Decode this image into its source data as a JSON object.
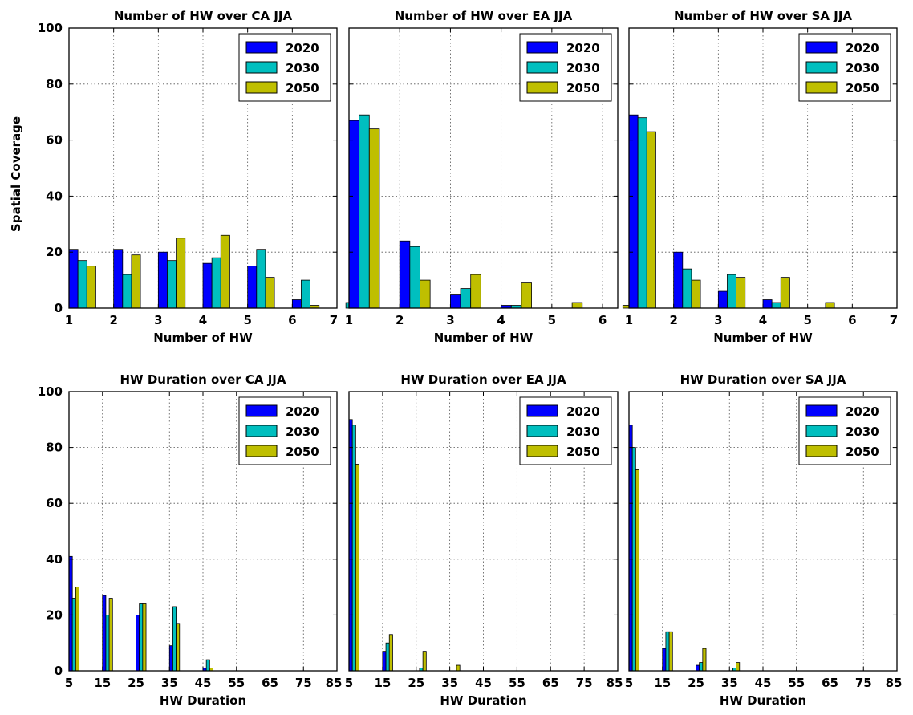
{
  "figure": {
    "ylabel": "Spatial Coverage"
  },
  "chart_data": [
    {
      "type": "bar",
      "title": "Number of HW over CA JJA",
      "xlabel": "Number of HW",
      "ylabel": "Spatial Coverage",
      "categories": [
        1,
        2,
        3,
        4,
        5,
        6,
        7
      ],
      "xticks": [
        "1",
        "2",
        "3",
        "4",
        "5",
        "6",
        "7"
      ],
      "yticks": [
        "0",
        "20",
        "40",
        "60",
        "80",
        "100"
      ],
      "ylim": [
        0,
        100
      ],
      "grid": true,
      "legend": "top-right",
      "series": [
        {
          "name": "2020",
          "color": "#0000ff",
          "values": [
            21,
            21,
            20,
            16,
            15,
            3,
            0
          ]
        },
        {
          "name": "2030",
          "color": "#00bfbf",
          "values": [
            17,
            12,
            17,
            18,
            21,
            10,
            2
          ]
        },
        {
          "name": "2050",
          "color": "#bfbf00",
          "values": [
            15,
            19,
            25,
            26,
            11,
            1,
            0
          ]
        }
      ]
    },
    {
      "type": "bar",
      "title": "Number of HW over EA JJA",
      "xlabel": "Number of HW",
      "categories": [
        1,
        2,
        3,
        4,
        5,
        6
      ],
      "xticks": [
        "1",
        "2",
        "3",
        "4",
        "5",
        "6"
      ],
      "ylim": [
        0,
        100
      ],
      "grid": true,
      "legend": "top-right",
      "series": [
        {
          "name": "2020",
          "color": "#0000ff",
          "values": [
            67,
            24,
            5,
            1,
            0,
            0
          ]
        },
        {
          "name": "2030",
          "color": "#00bfbf",
          "values": [
            69,
            22,
            7,
            1,
            0,
            0
          ]
        },
        {
          "name": "2050",
          "color": "#bfbf00",
          "values": [
            64,
            10,
            12,
            9,
            2,
            1
          ]
        }
      ]
    },
    {
      "type": "bar",
      "title": "Number of HW over SA JJA",
      "xlabel": "Number of HW",
      "categories": [
        1,
        2,
        3,
        4,
        5,
        6,
        7
      ],
      "xticks": [
        "1",
        "2",
        "3",
        "4",
        "5",
        "6",
        "7"
      ],
      "ylim": [
        0,
        100
      ],
      "grid": true,
      "legend": "top-right",
      "series": [
        {
          "name": "2020",
          "color": "#0000ff",
          "values": [
            69,
            20,
            6,
            3,
            0,
            0,
            0
          ]
        },
        {
          "name": "2030",
          "color": "#00bfbf",
          "values": [
            68,
            14,
            12,
            2,
            0,
            0,
            0
          ]
        },
        {
          "name": "2050",
          "color": "#bfbf00",
          "values": [
            63,
            10,
            11,
            11,
            2,
            0,
            0
          ]
        }
      ]
    },
    {
      "type": "bar",
      "title": "HW Duration over CA JJA",
      "xlabel": "HW Duration",
      "ylabel": "Spatial Coverage",
      "categories": [
        5,
        15,
        25,
        35,
        45,
        55,
        65,
        75
      ],
      "xticks": [
        "5",
        "15",
        "25",
        "35",
        "45",
        "55",
        "65",
        "75",
        "85"
      ],
      "yticks": [
        "0",
        "20",
        "40",
        "60",
        "80",
        "100"
      ],
      "ylim": [
        0,
        100
      ],
      "grid": true,
      "legend": "top-right",
      "series": [
        {
          "name": "2020",
          "color": "#0000ff",
          "values": [
            41,
            27,
            20,
            9,
            1,
            0,
            0,
            0
          ]
        },
        {
          "name": "2030",
          "color": "#00bfbf",
          "values": [
            26,
            20,
            24,
            23,
            4,
            0,
            0,
            0
          ]
        },
        {
          "name": "2050",
          "color": "#bfbf00",
          "values": [
            30,
            26,
            24,
            17,
            1,
            0,
            0,
            0
          ]
        }
      ]
    },
    {
      "type": "bar",
      "title": "HW Duration over EA JJA",
      "xlabel": "HW Duration",
      "categories": [
        5,
        15,
        25,
        35,
        45,
        55,
        65,
        75
      ],
      "xticks": [
        "5",
        "15",
        "25",
        "35",
        "45",
        "55",
        "65",
        "75",
        "85"
      ],
      "ylim": [
        0,
        100
      ],
      "grid": true,
      "legend": "top-right",
      "series": [
        {
          "name": "2020",
          "color": "#0000ff",
          "values": [
            90,
            7,
            0,
            0,
            0,
            0,
            0,
            0
          ]
        },
        {
          "name": "2030",
          "color": "#00bfbf",
          "values": [
            88,
            10,
            1,
            0,
            0,
            0,
            0,
            0
          ]
        },
        {
          "name": "2050",
          "color": "#bfbf00",
          "values": [
            74,
            13,
            7,
            2,
            0,
            0,
            0,
            0
          ]
        }
      ]
    },
    {
      "type": "bar",
      "title": "HW Duration over SA JJA",
      "xlabel": "HW Duration",
      "categories": [
        5,
        15,
        25,
        35,
        45,
        55,
        65,
        75
      ],
      "xticks": [
        "5",
        "15",
        "25",
        "35",
        "45",
        "55",
        "65",
        "75",
        "85"
      ],
      "ylim": [
        0,
        100
      ],
      "grid": true,
      "legend": "top-right",
      "series": [
        {
          "name": "2020",
          "color": "#0000ff",
          "values": [
            88,
            8,
            2,
            0,
            0,
            0,
            0,
            0
          ]
        },
        {
          "name": "2030",
          "color": "#00bfbf",
          "values": [
            80,
            14,
            3,
            1,
            0,
            0,
            0,
            0
          ]
        },
        {
          "name": "2050",
          "color": "#bfbf00",
          "values": [
            72,
            14,
            8,
            3,
            0,
            0,
            0,
            0
          ]
        }
      ]
    }
  ]
}
